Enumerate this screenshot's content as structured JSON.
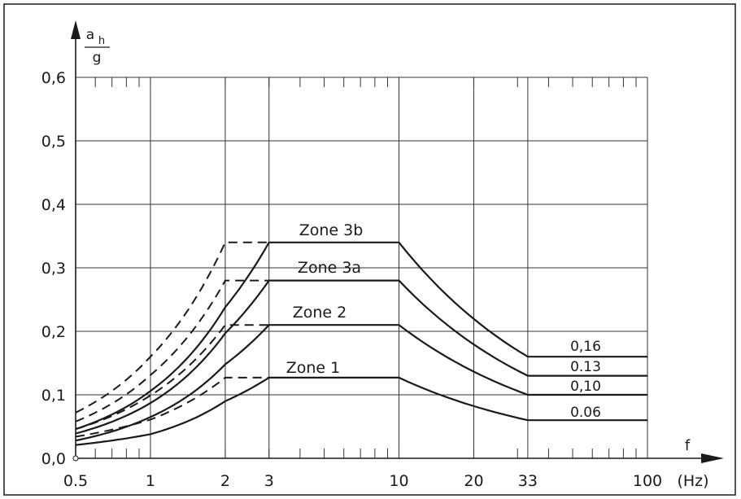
{
  "chart_data": {
    "type": "line",
    "x_scale": "log",
    "xlim": [
      0.5,
      100
    ],
    "ylim": [
      0,
      0.6
    ],
    "y_ticks": [
      "0,0",
      "0,1",
      "0,2",
      "0,3",
      "0,4",
      "0,5",
      "0,6"
    ],
    "x_tick_values": [
      0.5,
      1,
      2,
      3,
      10,
      20,
      33,
      100
    ],
    "x_tick_labels": [
      "0.5",
      "1",
      "2",
      "3",
      "10",
      "20",
      "33",
      "100"
    ],
    "xlabel": "f",
    "xunit": "(Hz)",
    "ylabel_num": "a",
    "ylabel_sub": "h",
    "ylabel_den": "g",
    "grid": true,
    "series": [
      {
        "name": "Zone 1",
        "solid": [
          [
            0.5,
            0.021
          ],
          [
            1,
            0.038
          ],
          [
            2,
            0.09
          ],
          [
            3,
            0.127
          ],
          [
            10,
            0.127
          ],
          [
            33,
            0.06
          ],
          [
            100,
            0.06
          ]
        ],
        "dashed": [
          [
            0.5,
            0.034
          ],
          [
            1,
            0.061
          ],
          [
            2,
            0.127
          ],
          [
            3,
            0.127
          ]
        ],
        "end_label": "0.06"
      },
      {
        "name": "Zone 2",
        "solid": [
          [
            0.5,
            0.028
          ],
          [
            1,
            0.065
          ],
          [
            2,
            0.148
          ],
          [
            3,
            0.21
          ],
          [
            10,
            0.21
          ],
          [
            33,
            0.1
          ],
          [
            100,
            0.1
          ]
        ],
        "dashed": [
          [
            0.5,
            0.046
          ],
          [
            1,
            0.099
          ],
          [
            2,
            0.21
          ],
          [
            3,
            0.21
          ]
        ],
        "end_label": "0,10"
      },
      {
        "name": "Zone 3a",
        "solid": [
          [
            0.5,
            0.039
          ],
          [
            1,
            0.087
          ],
          [
            2,
            0.197
          ],
          [
            3,
            0.28
          ],
          [
            10,
            0.28
          ],
          [
            33,
            0.13
          ],
          [
            100,
            0.13
          ]
        ],
        "dashed": [
          [
            0.5,
            0.058
          ],
          [
            1,
            0.131
          ],
          [
            2,
            0.28
          ],
          [
            3,
            0.28
          ]
        ],
        "end_label": "0.13"
      },
      {
        "name": "Zone 3b",
        "solid": [
          [
            0.5,
            0.046
          ],
          [
            1,
            0.106
          ],
          [
            2,
            0.238
          ],
          [
            3,
            0.34
          ],
          [
            10,
            0.34
          ],
          [
            33,
            0.16
          ],
          [
            100,
            0.16
          ]
        ],
        "dashed": [
          [
            0.5,
            0.072
          ],
          [
            1,
            0.16
          ],
          [
            2,
            0.34
          ],
          [
            3,
            0.34
          ]
        ],
        "end_label": "0,16"
      }
    ]
  }
}
